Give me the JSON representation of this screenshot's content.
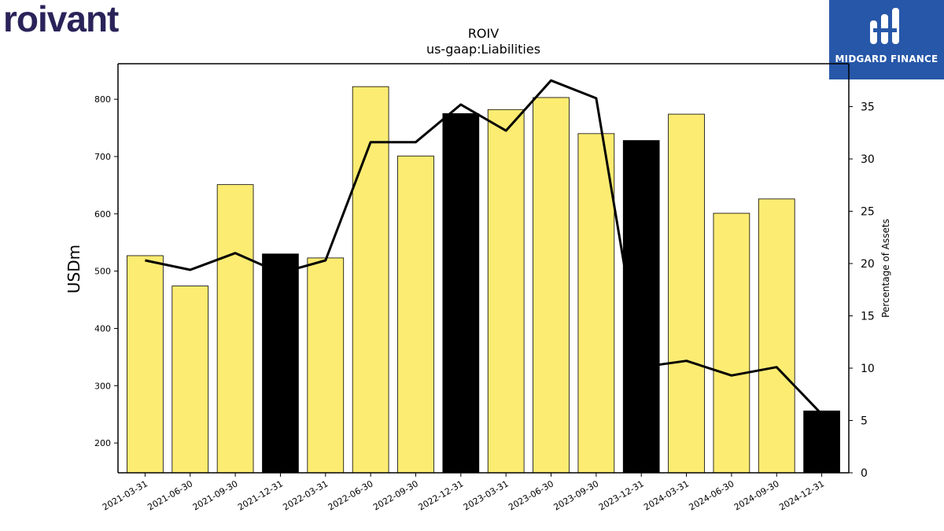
{
  "brand": {
    "left_logo_text": "roivant",
    "left_logo_color": "#2a2359",
    "right_logo_text": "MIDGARD FINANCE",
    "right_logo_bg": "#2757a8"
  },
  "chart_data": {
    "type": "bar",
    "title": "ROIV",
    "subtitle": "us-gaap:Liabilities",
    "ylabel": "USDm",
    "y2label": "Percentage of Assets",
    "ylim": [
      148,
      862
    ],
    "y2lim": [
      0,
      39.1
    ],
    "yticks": [
      200,
      300,
      400,
      500,
      600,
      700,
      800
    ],
    "y2ticks": [
      0,
      5,
      10,
      15,
      20,
      25,
      30,
      35
    ],
    "grid": false,
    "categories": [
      "2021-03-31",
      "2021-06-30",
      "2021-09-30",
      "2021-12-31",
      "2022-03-31",
      "2022-06-30",
      "2022-09-30",
      "2022-12-31",
      "2023-03-31",
      "2023-06-30",
      "2023-09-30",
      "2023-12-31",
      "2024-03-31",
      "2024-06-30",
      "2024-09-30",
      "2024-12-31"
    ],
    "series": [
      {
        "kind": "bar",
        "values": [
          527,
          474,
          651,
          530,
          523,
          822,
          701,
          775,
          782,
          803,
          740,
          728,
          774,
          601,
          626,
          256
        ],
        "colors": [
          "#fdec72",
          "#fdec72",
          "#fdec72",
          "#000000",
          "#fdec72",
          "#fdec72",
          "#fdec72",
          "#000000",
          "#fdec72",
          "#fdec72",
          "#fdec72",
          "#000000",
          "#fdec72",
          "#fdec72",
          "#fdec72",
          "#000000"
        ]
      },
      {
        "kind": "line",
        "axis": "right",
        "color": "#000000",
        "values": [
          20.3,
          19.4,
          21.0,
          19.1,
          20.3,
          31.6,
          31.6,
          35.2,
          32.7,
          37.5,
          35.8,
          10.1,
          10.7,
          9.3,
          10.1,
          5.6
        ]
      }
    ]
  }
}
